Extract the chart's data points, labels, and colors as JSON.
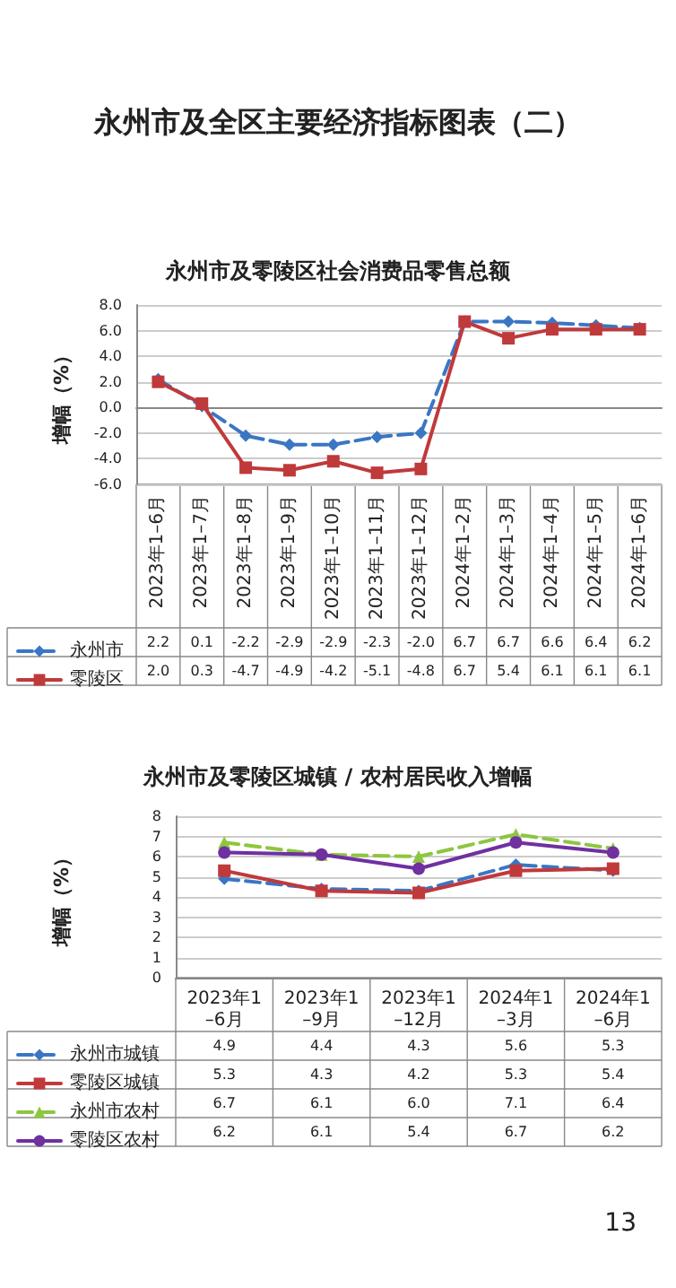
{
  "chart_data": [
    {
      "type": "line",
      "title": "永州市及零陵区社会消费品零售总额",
      "ylabel": "增幅（%）",
      "annotations": [
        "永州市及全区主要经济指标图表（二）"
      ],
      "categories": [
        "2023年1–6月",
        "2023年1–7月",
        "2023年1–8月",
        "2023年1–9月",
        "2023年1–10月",
        "2023年1–11月",
        "2023年1–12月",
        "2024年1–2月",
        "2024年1–3月",
        "2024年1–4月",
        "2024年1–5月",
        "2024年1–6月"
      ],
      "series": [
        {
          "name": "永州市",
          "color": "#3a76c4",
          "marker": "diamond",
          "line_style": "dashed",
          "values": [
            2.2,
            0.1,
            -2.2,
            -2.9,
            -2.9,
            -2.3,
            -2.0,
            6.7,
            6.7,
            6.6,
            6.4,
            6.2
          ],
          "value_labels": [
            "2.2",
            "0.1",
            "-2.2",
            "-2.9",
            "-2.9",
            "-2.3",
            "-2.0",
            "6.7",
            "6.7",
            "6.6",
            "6.4",
            "6.2"
          ]
        },
        {
          "name": "零陵区",
          "color": "#c0393b",
          "marker": "square",
          "line_style": "solid",
          "values": [
            2.0,
            0.3,
            -4.7,
            -4.9,
            -4.2,
            -5.1,
            -4.8,
            6.7,
            5.4,
            6.1,
            6.1,
            6.1
          ],
          "value_labels": [
            "2.0",
            "0.3",
            "-4.7",
            "-4.9",
            "-4.2",
            "-5.1",
            "-4.8",
            "6.7",
            "5.4",
            "6.1",
            "6.1",
            "6.1"
          ]
        }
      ],
      "ylim": [
        -6,
        8
      ],
      "yticks": [
        {
          "value": -6,
          "label": "-6.0"
        },
        {
          "value": -4,
          "label": "-4.0"
        },
        {
          "value": -2,
          "label": "-2.0"
        },
        {
          "value": 0,
          "label": "0.0"
        },
        {
          "value": 2,
          "label": "2.0"
        },
        {
          "value": 4,
          "label": "4.0"
        },
        {
          "value": 6,
          "label": "6.0"
        },
        {
          "value": 8,
          "label": "8.0"
        }
      ],
      "grid": "y",
      "legend": "bottom left"
    },
    {
      "type": "line",
      "title": "永州市及零陵区城镇 / 农村居民收入增幅",
      "ylabel": "增幅（%）",
      "annotations": [
        "13"
      ],
      "categories": [
        "2023年1–6月",
        "2023年1–9月",
        "2023年1–12月",
        "2024年1–3月",
        "2024年1–6月"
      ],
      "series": [
        {
          "name": "永州市城镇",
          "color": "#3a76c4",
          "marker": "diamond",
          "line_style": "dashed",
          "values": [
            4.9,
            4.4,
            4.3,
            5.6,
            5.3
          ],
          "value_labels": [
            "4.9",
            "4.4",
            "4.3",
            "5.6",
            "5.3"
          ]
        },
        {
          "name": "零陵区城镇",
          "color": "#c0393b",
          "marker": "square",
          "line_style": "solid",
          "values": [
            5.3,
            4.3,
            4.2,
            5.3,
            5.4
          ],
          "value_labels": [
            "5.3",
            "4.3",
            "4.2",
            "5.3",
            "5.4"
          ]
        },
        {
          "name": "永州市农村",
          "color": "#8dc63f",
          "marker": "triangle",
          "line_style": "dashed",
          "values": [
            6.7,
            6.1,
            6.0,
            7.1,
            6.4
          ],
          "value_labels": [
            "6.7",
            "6.1",
            "6.0",
            "7.1",
            "6.4"
          ]
        },
        {
          "name": "零陵区农村",
          "color": "#7030a0",
          "marker": "circle",
          "line_style": "solid",
          "values": [
            6.2,
            6.1,
            5.4,
            6.7,
            6.2
          ],
          "value_labels": [
            "6.2",
            "6.1",
            "5.4",
            "6.7",
            "6.2"
          ]
        }
      ],
      "ylim": [
        0,
        8
      ],
      "yticks": [
        0,
        1,
        2,
        3,
        4,
        5,
        6,
        7,
        8
      ],
      "grid": "y",
      "legend": "bottom left"
    }
  ]
}
